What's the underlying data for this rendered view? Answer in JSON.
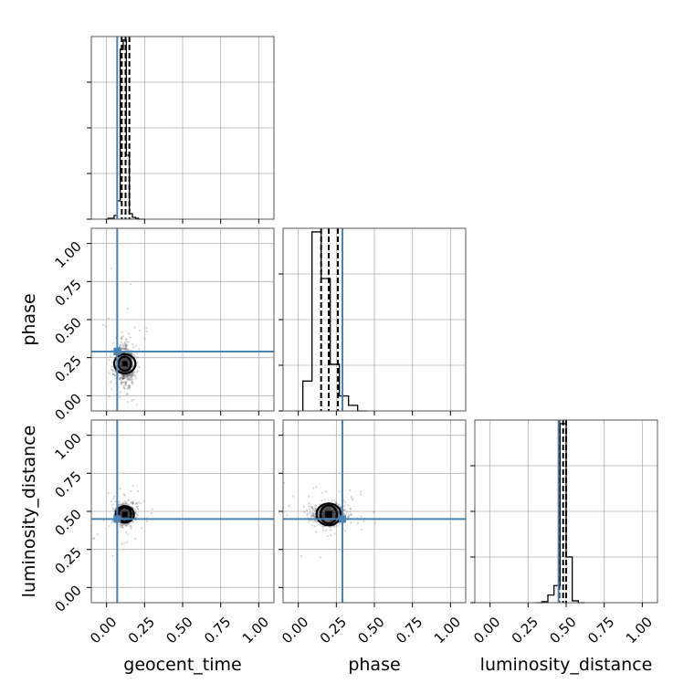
{
  "chart_data": {
    "type": "corner",
    "parameters": [
      "geocent_time",
      "phase",
      "luminosity_distance"
    ],
    "tick_values": [
      0.0,
      0.25,
      0.5,
      0.75,
      1.0
    ],
    "tick_labels": [
      "0.00",
      "0.25",
      "0.50",
      "0.75",
      "1.00"
    ],
    "xlim": [
      -0.1,
      1.1
    ],
    "ylim": [
      -0.1,
      1.1
    ],
    "grid": true,
    "colors": {
      "truth": "#4682b4",
      "hist": "#000000",
      "scatter": "#555555",
      "grid": "#b0b0b0"
    },
    "truths": {
      "geocent_time": 0.07,
      "phase": 0.29,
      "luminosity_distance": 0.45
    },
    "quantiles": {
      "geocent_time": [
        0.1,
        0.125,
        0.15
      ],
      "phase": [
        0.15,
        0.2,
        0.26
      ],
      "luminosity_distance": [
        0.455,
        0.48,
        0.5
      ]
    },
    "histograms": {
      "geocent_time": {
        "edges": [
          -0.01,
          0.01,
          0.03,
          0.05,
          0.07,
          0.09,
          0.11,
          0.13,
          0.15,
          0.17,
          0.19,
          0.21,
          0.23,
          0.25
        ],
        "counts": [
          0,
          0.005,
          0.005,
          0.02,
          0.1,
          0.93,
          0.98,
          0.35,
          0.03,
          0.01,
          0.005,
          0,
          0
        ]
      },
      "phase": {
        "edges": [
          0.03,
          0.09,
          0.15,
          0.21,
          0.27,
          0.33,
          0.39,
          0.45
        ],
        "counts": [
          0.16,
          0.96,
          0.71,
          0.25,
          0.08,
          0.03,
          0.0
        ]
      },
      "luminosity_distance": {
        "edges": [
          0.3,
          0.34,
          0.38,
          0.42,
          0.46,
          0.5,
          0.54,
          0.58,
          0.62
        ],
        "counts": [
          0.0,
          0.005,
          0.04,
          0.09,
          0.94,
          0.24,
          0.01,
          0.0
        ]
      }
    },
    "pairs": [
      {
        "x": "geocent_time",
        "y": "phase",
        "center": [
          0.12,
          0.21
        ],
        "spread": [
          0.03,
          0.06
        ],
        "contour_radii": [
          0.035,
          0.07
        ]
      },
      {
        "x": "geocent_time",
        "y": "luminosity_distance",
        "center": [
          0.12,
          0.48
        ],
        "spread": [
          0.03,
          0.03
        ],
        "contour_radii": [
          0.035,
          0.06
        ]
      },
      {
        "x": "phase",
        "y": "luminosity_distance",
        "center": [
          0.2,
          0.48
        ],
        "spread": [
          0.05,
          0.03
        ],
        "contour_radii": [
          0.045,
          0.08
        ]
      }
    ]
  }
}
